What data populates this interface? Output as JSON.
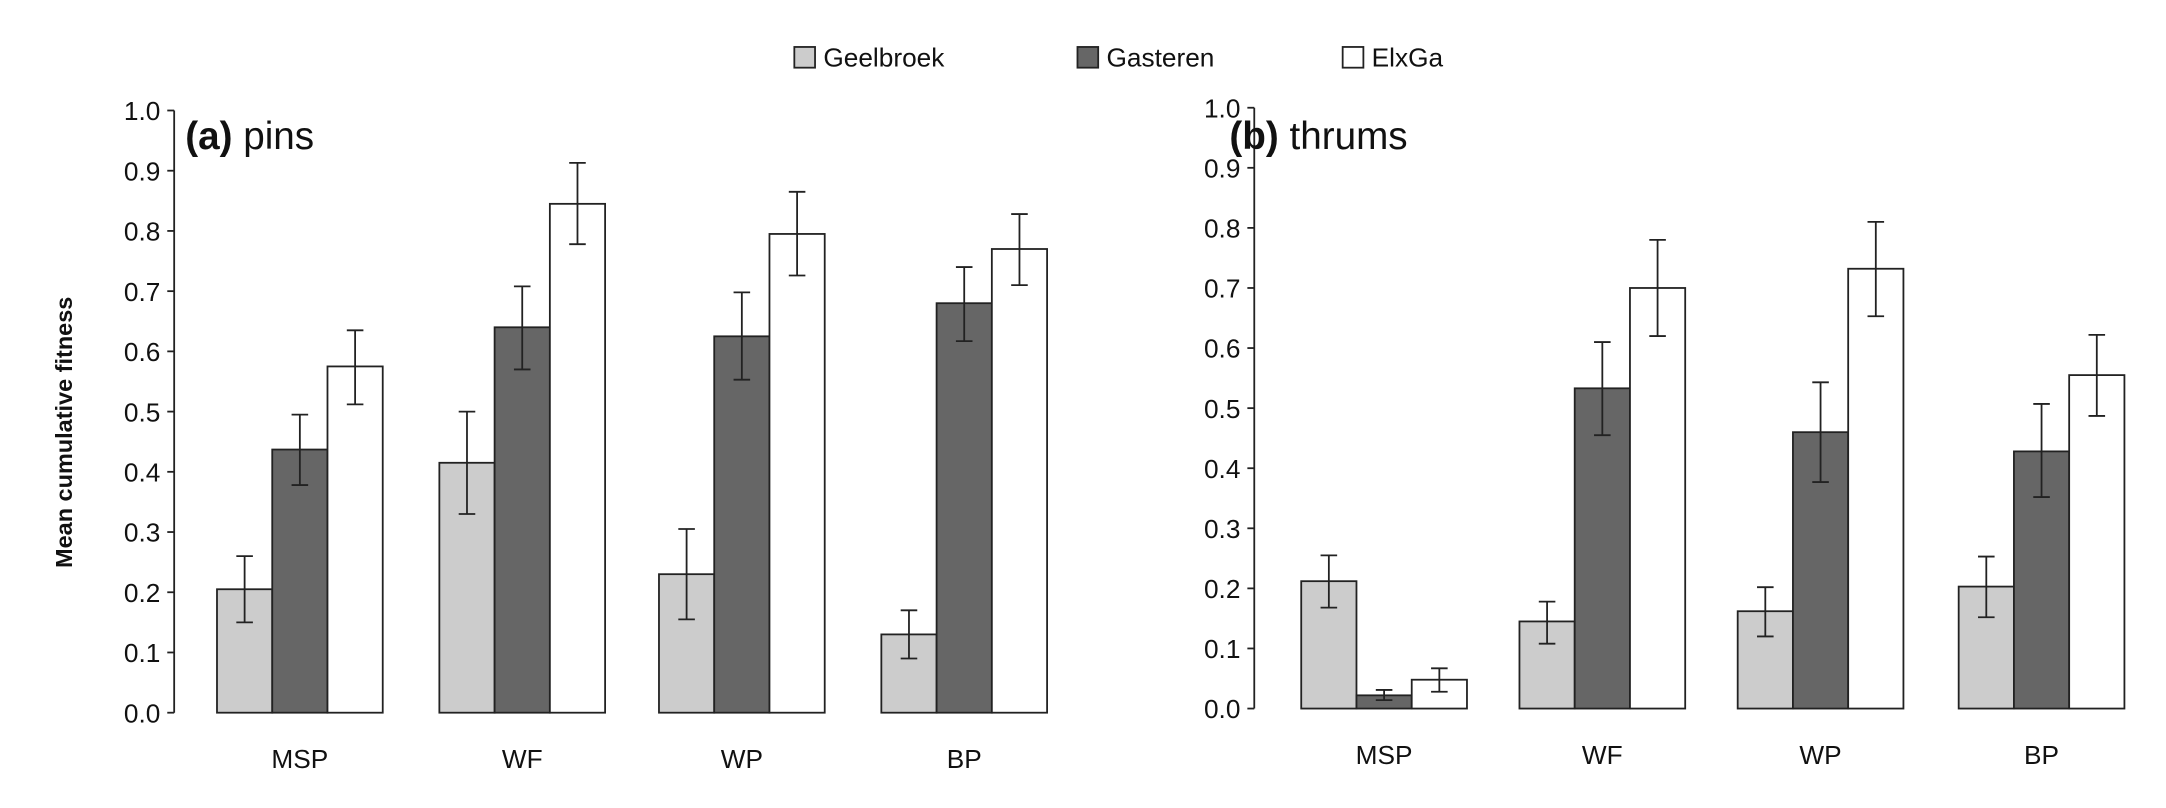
{
  "chart_data": [
    {
      "type": "bar",
      "panel_label": "(a)",
      "title": "pins",
      "ylabel": "Mean cumulative fitness",
      "xlabel": "",
      "ylim": [
        0,
        1.0
      ],
      "yticks": [
        "0.0",
        "0.1",
        "0.2",
        "0.3",
        "0.4",
        "0.5",
        "0.6",
        "0.7",
        "0.8",
        "0.9",
        "1.0"
      ],
      "categories": [
        "MSP",
        "WF",
        "WP",
        "BP"
      ],
      "series": [
        {
          "name": "Geelbroek",
          "color": "#cccccc",
          "values": [
            0.205,
            0.415,
            0.23,
            0.13
          ],
          "err_low": [
            0.15,
            0.33,
            0.155,
            0.09
          ],
          "err_high": [
            0.26,
            0.5,
            0.305,
            0.17
          ]
        },
        {
          "name": "Gasteren",
          "color": "#666666",
          "values": [
            0.437,
            0.64,
            0.625,
            0.68
          ],
          "err_low": [
            0.378,
            0.57,
            0.553,
            0.617
          ],
          "err_high": [
            0.495,
            0.708,
            0.698,
            0.74
          ]
        },
        {
          "name": "ElxGa",
          "color": "#ffffff",
          "values": [
            0.575,
            0.845,
            0.795,
            0.77
          ],
          "err_low": [
            0.512,
            0.778,
            0.726,
            0.71
          ],
          "err_high": [
            0.635,
            0.913,
            0.865,
            0.828
          ]
        }
      ]
    },
    {
      "type": "bar",
      "panel_label": "(b)",
      "title": "thrums",
      "ylabel": "",
      "xlabel": "",
      "ylim": [
        0,
        1.0
      ],
      "yticks": [
        "0.0",
        "0.1",
        "0.2",
        "0.3",
        "0.4",
        "0.5",
        "0.6",
        "0.7",
        "0.8",
        "0.9",
        "1.0"
      ],
      "categories": [
        "MSP",
        "WF",
        "WP",
        "BP"
      ],
      "series": [
        {
          "name": "Geelbroek",
          "color": "#cccccc",
          "values": [
            0.212,
            0.145,
            0.162,
            0.203
          ],
          "err_low": [
            0.168,
            0.108,
            0.12,
            0.152
          ],
          "err_high": [
            0.255,
            0.178,
            0.202,
            0.253
          ]
        },
        {
          "name": "Gasteren",
          "color": "#666666",
          "values": [
            0.022,
            0.533,
            0.46,
            0.428
          ],
          "err_low": [
            0.014,
            0.455,
            0.377,
            0.352
          ],
          "err_high": [
            0.031,
            0.61,
            0.543,
            0.507
          ]
        },
        {
          "name": "ElxGa",
          "color": "#ffffff",
          "values": [
            0.048,
            0.7,
            0.732,
            0.555
          ],
          "err_low": [
            0.028,
            0.62,
            0.653,
            0.487
          ],
          "err_high": [
            0.067,
            0.78,
            0.81,
            0.622
          ]
        }
      ]
    }
  ],
  "legend": {
    "placement": "top-center",
    "items": [
      {
        "label": "Geelbroek",
        "color": "#cccccc"
      },
      {
        "label": "Gasteren",
        "color": "#666666"
      },
      {
        "label": "ElxGa",
        "color": "#ffffff"
      }
    ]
  }
}
